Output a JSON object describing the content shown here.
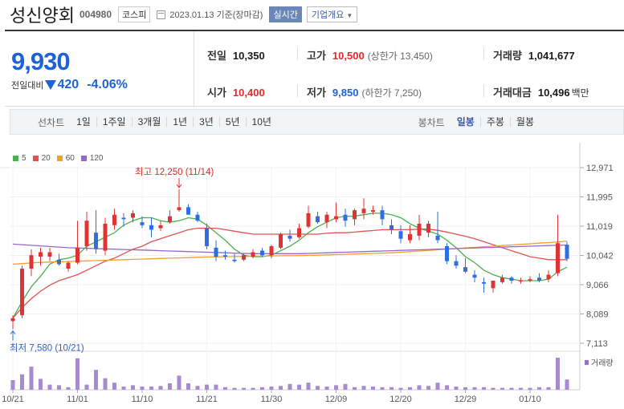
{
  "header": {
    "name": "성신양회",
    "code": "004980",
    "market": "코스피",
    "date": "2023.01.13",
    "basis": "기준(장마감)",
    "realtime": "실시간",
    "company_info": "기업개요"
  },
  "quote": {
    "price": "9,930",
    "change_label": "전일대비",
    "change": "420",
    "change_rate": "-4.06%",
    "prev_close_label": "전일",
    "prev_close": "10,350",
    "open_label": "시가",
    "open": "10,400",
    "high_label": "고가",
    "high": "10,500",
    "upper_limit": "(상한가 13,450)",
    "low_label": "저가",
    "low": "9,850",
    "lower_limit": "(하한가 7,250)",
    "volume_label": "거래량",
    "volume": "1,041,677",
    "amount_label": "거래대금",
    "amount": "10,496",
    "amount_unit": "백만"
  },
  "toolbar": {
    "line_label": "선차트",
    "periods": [
      "1일",
      "1주일",
      "3개월",
      "1년",
      "3년",
      "5년",
      "10년"
    ],
    "candle_label": "봉차트",
    "candles": [
      "일봉",
      "주봉",
      "월봉"
    ],
    "active_candle": "일봉"
  },
  "legend": [
    {
      "label": "5",
      "color": "#4caf50"
    },
    {
      "label": "20",
      "color": "#e05252"
    },
    {
      "label": "60",
      "color": "#f0a030"
    },
    {
      "label": "120",
      "color": "#9966cc"
    }
  ],
  "chart_data": {
    "type": "candlestick",
    "y_ticks": [
      12971,
      11995,
      11019,
      10042,
      9066,
      8089,
      7113
    ],
    "y_tick_labels": [
      "12,971",
      "11,995",
      "11,019",
      "10,042",
      "9,066",
      "8,089",
      "7,113"
    ],
    "ylim": [
      7113,
      12971
    ],
    "x_tick_labels": [
      {
        "label": "10/21",
        "index": 0
      },
      {
        "label": "11/01",
        "index": 7
      },
      {
        "label": "11/10",
        "index": 14
      },
      {
        "label": "11/21",
        "index": 21
      },
      {
        "label": "11/30",
        "index": 28
      },
      {
        "label": "12/09",
        "index": 35
      },
      {
        "label": "12/20",
        "index": 42
      },
      {
        "label": "12/29",
        "index": 49
      },
      {
        "label": "01/10",
        "index": 56
      }
    ],
    "annotations": {
      "high": "최고 12,250 (11/14)",
      "low": "최저 7,580 (10/21)"
    },
    "volume_label": "거래량",
    "candles": [
      {
        "o": 7850,
        "h": 8050,
        "l": 7580,
        "c": 7950
      },
      {
        "o": 8050,
        "h": 9700,
        "l": 7950,
        "c": 9600
      },
      {
        "o": 9600,
        "h": 10250,
        "l": 9350,
        "c": 10050
      },
      {
        "o": 10000,
        "h": 10300,
        "l": 9700,
        "c": 10150
      },
      {
        "o": 10000,
        "h": 10300,
        "l": 9850,
        "c": 10150
      },
      {
        "o": 9900,
        "h": 10100,
        "l": 9700,
        "c": 9750
      },
      {
        "o": 9600,
        "h": 9850,
        "l": 9500,
        "c": 9800
      },
      {
        "o": 9800,
        "h": 11200,
        "l": 9750,
        "c": 10300
      },
      {
        "o": 10350,
        "h": 11500,
        "l": 10200,
        "c": 11200
      },
      {
        "o": 10800,
        "h": 11550,
        "l": 10100,
        "c": 10250
      },
      {
        "o": 10200,
        "h": 11300,
        "l": 10050,
        "c": 11100
      },
      {
        "o": 11050,
        "h": 11600,
        "l": 10900,
        "c": 11400
      },
      {
        "o": 11300,
        "h": 11450,
        "l": 11000,
        "c": 11250
      },
      {
        "o": 11300,
        "h": 11550,
        "l": 11150,
        "c": 11450
      },
      {
        "o": 11150,
        "h": 11350,
        "l": 10950,
        "c": 11050
      },
      {
        "o": 11050,
        "h": 11300,
        "l": 10650,
        "c": 10900
      },
      {
        "o": 10950,
        "h": 11200,
        "l": 10850,
        "c": 11050
      },
      {
        "o": 11150,
        "h": 11550,
        "l": 11100,
        "c": 11350
      },
      {
        "o": 11550,
        "h": 12250,
        "l": 11500,
        "c": 11650
      },
      {
        "o": 11650,
        "h": 11750,
        "l": 11400,
        "c": 11400
      },
      {
        "o": 11400,
        "h": 11500,
        "l": 11150,
        "c": 11200
      },
      {
        "o": 10950,
        "h": 11100,
        "l": 10250,
        "c": 10350
      },
      {
        "o": 10300,
        "h": 10550,
        "l": 9850,
        "c": 10000
      },
      {
        "o": 10050,
        "h": 10200,
        "l": 9900,
        "c": 10000
      },
      {
        "o": 9900,
        "h": 10100,
        "l": 9800,
        "c": 9850
      },
      {
        "o": 9900,
        "h": 10100,
        "l": 9850,
        "c": 10050
      },
      {
        "o": 10000,
        "h": 10250,
        "l": 9950,
        "c": 10150
      },
      {
        "o": 10200,
        "h": 10300,
        "l": 10000,
        "c": 10050
      },
      {
        "o": 10050,
        "h": 10400,
        "l": 9950,
        "c": 10350
      },
      {
        "o": 10300,
        "h": 10800,
        "l": 10250,
        "c": 10750
      },
      {
        "o": 10700,
        "h": 10900,
        "l": 10500,
        "c": 10600
      },
      {
        "o": 10650,
        "h": 11100,
        "l": 10600,
        "c": 10950
      },
      {
        "o": 11000,
        "h": 11700,
        "l": 10950,
        "c": 11450
      },
      {
        "o": 11350,
        "h": 11500,
        "l": 11100,
        "c": 11150
      },
      {
        "o": 11150,
        "h": 11500,
        "l": 10950,
        "c": 11400
      },
      {
        "o": 11250,
        "h": 11800,
        "l": 11150,
        "c": 11350
      },
      {
        "o": 11400,
        "h": 11600,
        "l": 11000,
        "c": 11200
      },
      {
        "o": 11250,
        "h": 11600,
        "l": 11050,
        "c": 11550
      },
      {
        "o": 11450,
        "h": 11950,
        "l": 11250,
        "c": 11600
      },
      {
        "o": 11500,
        "h": 11700,
        "l": 11400,
        "c": 11550
      },
      {
        "o": 11550,
        "h": 11700,
        "l": 11050,
        "c": 11250
      },
      {
        "o": 11050,
        "h": 11250,
        "l": 10750,
        "c": 10900
      },
      {
        "o": 10850,
        "h": 11050,
        "l": 10450,
        "c": 10600
      },
      {
        "o": 10550,
        "h": 11050,
        "l": 10450,
        "c": 10750
      },
      {
        "o": 10700,
        "h": 11400,
        "l": 10550,
        "c": 11100
      },
      {
        "o": 10800,
        "h": 11200,
        "l": 10650,
        "c": 11100
      },
      {
        "o": 10700,
        "h": 11500,
        "l": 10450,
        "c": 10550
      },
      {
        "o": 10350,
        "h": 10450,
        "l": 9750,
        "c": 9850
      },
      {
        "o": 9850,
        "h": 10050,
        "l": 9600,
        "c": 9700
      },
      {
        "o": 9650,
        "h": 9950,
        "l": 9450,
        "c": 9500
      },
      {
        "o": 9400,
        "h": 9550,
        "l": 9150,
        "c": 9300
      },
      {
        "o": 9150,
        "h": 9300,
        "l": 8800,
        "c": 9100
      },
      {
        "o": 8950,
        "h": 9200,
        "l": 8800,
        "c": 9200
      },
      {
        "o": 9150,
        "h": 9400,
        "l": 9100,
        "c": 9300
      },
      {
        "o": 9300,
        "h": 9350,
        "l": 9100,
        "c": 9200
      },
      {
        "o": 9200,
        "h": 9300,
        "l": 9100,
        "c": 9200
      },
      {
        "o": 9200,
        "h": 9350,
        "l": 9150,
        "c": 9250
      },
      {
        "o": 9300,
        "h": 9450,
        "l": 9150,
        "c": 9200
      },
      {
        "o": 9250,
        "h": 9550,
        "l": 9150,
        "c": 9400
      },
      {
        "o": 9450,
        "h": 11400,
        "l": 9350,
        "c": 10450
      },
      {
        "o": 10400,
        "h": 10500,
        "l": 9850,
        "c": 9930
      }
    ],
    "volume": [
      30,
      48,
      72,
      34,
      16,
      14,
      8,
      98,
      16,
      62,
      36,
      22,
      10,
      14,
      10,
      10,
      12,
      20,
      44,
      20,
      12,
      16,
      16,
      8,
      6,
      6,
      6,
      8,
      10,
      12,
      18,
      16,
      22,
      12,
      10,
      14,
      18,
      8,
      12,
      10,
      8,
      8,
      6,
      8,
      14,
      12,
      22,
      14,
      10,
      8,
      8,
      8,
      6,
      6,
      6,
      6,
      6,
      8,
      8,
      100,
      32
    ],
    "ma_series": [
      {
        "name": "5",
        "color": "#4caf50",
        "values": [
          7950,
          8500,
          9000,
          9350,
          9750,
          9900,
          9950,
          10050,
          10350,
          10500,
          10650,
          10800,
          11050,
          11200,
          11300,
          11300,
          11200,
          11150,
          11200,
          11300,
          11250,
          11050,
          10800,
          10550,
          10250,
          10050,
          10000,
          10000,
          10050,
          10200,
          10350,
          10550,
          10800,
          11000,
          11150,
          11300,
          11350,
          11350,
          11400,
          11450,
          11450,
          11400,
          11300,
          11100,
          10950,
          10850,
          10750,
          10550,
          10300,
          10000,
          9800,
          9550,
          9400,
          9300,
          9250,
          9200,
          9200,
          9200,
          9250,
          9500,
          9650
        ]
      },
      {
        "name": "20",
        "color": "#e05252",
        "values": [
          7950,
          8300,
          8600,
          8850,
          9050,
          9200,
          9300,
          9400,
          9550,
          9700,
          9850,
          9950,
          10100,
          10250,
          10350,
          10500,
          10600,
          10700,
          10800,
          10900,
          10950,
          10950,
          10950,
          10900,
          10850,
          10800,
          10750,
          10750,
          10750,
          10750,
          10750,
          10750,
          10750,
          10750,
          10780,
          10800,
          10800,
          10820,
          10850,
          10870,
          10900,
          10900,
          10900,
          10900,
          10920,
          10920,
          10880,
          10820,
          10750,
          10680,
          10600,
          10500,
          10400,
          10300,
          10200,
          10100,
          10000,
          9950,
          9900,
          9900,
          9900
        ]
      },
      {
        "name": "60",
        "color": "#f0a030",
        "values": [
          9750,
          9770,
          9790,
          9810,
          9820,
          9830,
          9840,
          9850,
          9860,
          9870,
          9880,
          9890,
          9900,
          9910,
          9920,
          9930,
          9940,
          9950,
          9960,
          9970,
          9980,
          9990,
          9995,
          10000,
          10005,
          10010,
          10015,
          10020,
          10025,
          10030,
          10035,
          10040,
          10045,
          10050,
          10060,
          10070,
          10080,
          10090,
          10100,
          10110,
          10120,
          10130,
          10150,
          10170,
          10190,
          10210,
          10230,
          10250,
          10270,
          10290,
          10310,
          10330,
          10350,
          10370,
          10390,
          10410,
          10430,
          10450,
          10470,
          10490,
          10520
        ]
      },
      {
        "name": "120",
        "color": "#9966cc",
        "values": [
          10420,
          10400,
          10380,
          10360,
          10340,
          10320,
          10300,
          10290,
          10280,
          10270,
          10260,
          10250,
          10240,
          10230,
          10220,
          10210,
          10200,
          10190,
          10180,
          10170,
          10160,
          10150,
          10140,
          10130,
          10120,
          10110,
          10100,
          10100,
          10100,
          10100,
          10100,
          10100,
          10110,
          10120,
          10130,
          10140,
          10150,
          10160,
          10170,
          10180,
          10190,
          10200,
          10210,
          10220,
          10230,
          10240,
          10250,
          10260,
          10270,
          10280,
          10290,
          10300,
          10310,
          10320,
          10330,
          10340,
          10350,
          10360,
          10370,
          10380,
          10390
        ]
      }
    ]
  }
}
